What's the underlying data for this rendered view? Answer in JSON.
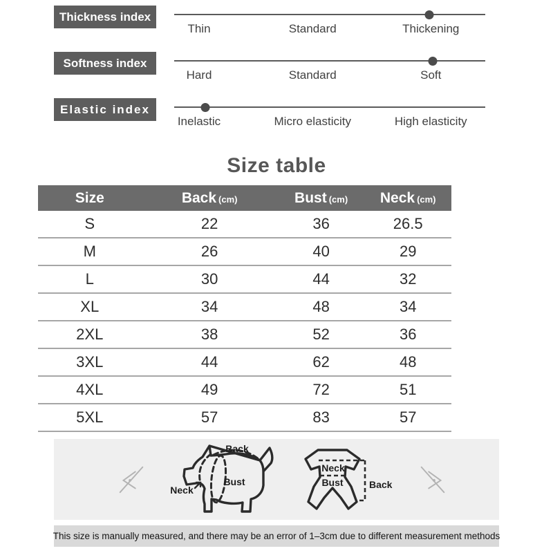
{
  "indices": [
    {
      "label": "Thickness index",
      "options": [
        "Thin",
        "Standard",
        "Thickening"
      ],
      "level_percent": 82,
      "value": "Thickening"
    },
    {
      "label": "Softness index",
      "options": [
        "Hard",
        "Standard",
        "Soft"
      ],
      "level_percent": 83,
      "value": "Soft"
    },
    {
      "label": "Elastic index",
      "options": [
        "Inelastic",
        "Micro elasticity",
        "High elasticity"
      ],
      "level_percent": 10,
      "value": "Inelastic"
    }
  ],
  "size_table": {
    "title": "Size table",
    "columns": [
      {
        "name": "Size",
        "unit": ""
      },
      {
        "name": "Back",
        "unit": "(cm)"
      },
      {
        "name": "Bust",
        "unit": "(cm)"
      },
      {
        "name": "Neck",
        "unit": "(cm)"
      }
    ],
    "rows": [
      {
        "size": "S",
        "back": "22",
        "bust": "36",
        "neck": "26.5"
      },
      {
        "size": "M",
        "back": "26",
        "bust": "40",
        "neck": "29"
      },
      {
        "size": "L",
        "back": "30",
        "bust": "44",
        "neck": "32"
      },
      {
        "size": "XL",
        "back": "34",
        "bust": "48",
        "neck": "34"
      },
      {
        "size": "2XL",
        "back": "38",
        "bust": "52",
        "neck": "36"
      },
      {
        "size": "3XL",
        "back": "44",
        "bust": "62",
        "neck": "48"
      },
      {
        "size": "4XL",
        "back": "49",
        "bust": "72",
        "neck": "51"
      },
      {
        "size": "5XL",
        "back": "57",
        "bust": "83",
        "neck": "57"
      }
    ]
  },
  "chart_data": {
    "type": "table",
    "title": "Size table",
    "columns": [
      "Size",
      "Back (cm)",
      "Bust (cm)",
      "Neck (cm)"
    ],
    "rows": [
      [
        "S",
        22,
        36,
        26.5
      ],
      [
        "M",
        26,
        40,
        29
      ],
      [
        "L",
        30,
        44,
        32
      ],
      [
        "XL",
        34,
        48,
        34
      ],
      [
        "2XL",
        38,
        52,
        36
      ],
      [
        "3XL",
        44,
        62,
        48
      ],
      [
        "4XL",
        49,
        72,
        51
      ],
      [
        "5XL",
        57,
        83,
        57
      ]
    ],
    "indices": [
      {
        "name": "Thickness index",
        "scale": [
          "Thin",
          "Standard",
          "Thickening"
        ],
        "value": "Thickening"
      },
      {
        "name": "Softness index",
        "scale": [
          "Hard",
          "Standard",
          "Soft"
        ],
        "value": "Soft"
      },
      {
        "name": "Elastic index",
        "scale": [
          "Inelastic",
          "Micro elasticity",
          "High elasticity"
        ],
        "value": "Inelastic"
      }
    ]
  },
  "diagram": {
    "dog": {
      "back": "Back",
      "neck": "Neck",
      "bust": "Bust"
    },
    "garment": {
      "neck": "Neck",
      "bust": "Bust",
      "back": "Back"
    }
  },
  "footer": {
    "note": "This size is manually measured, and there may be an error of 1–3cm due to different measurement methods"
  },
  "colors": {
    "chip_bg": "#5d5d5d",
    "table_header_bg": "#6b6b6b",
    "panel_bg": "#efefef",
    "footer_bg": "#d9d9d9",
    "title_text": "#575757",
    "line": "#5a5a5a"
  }
}
